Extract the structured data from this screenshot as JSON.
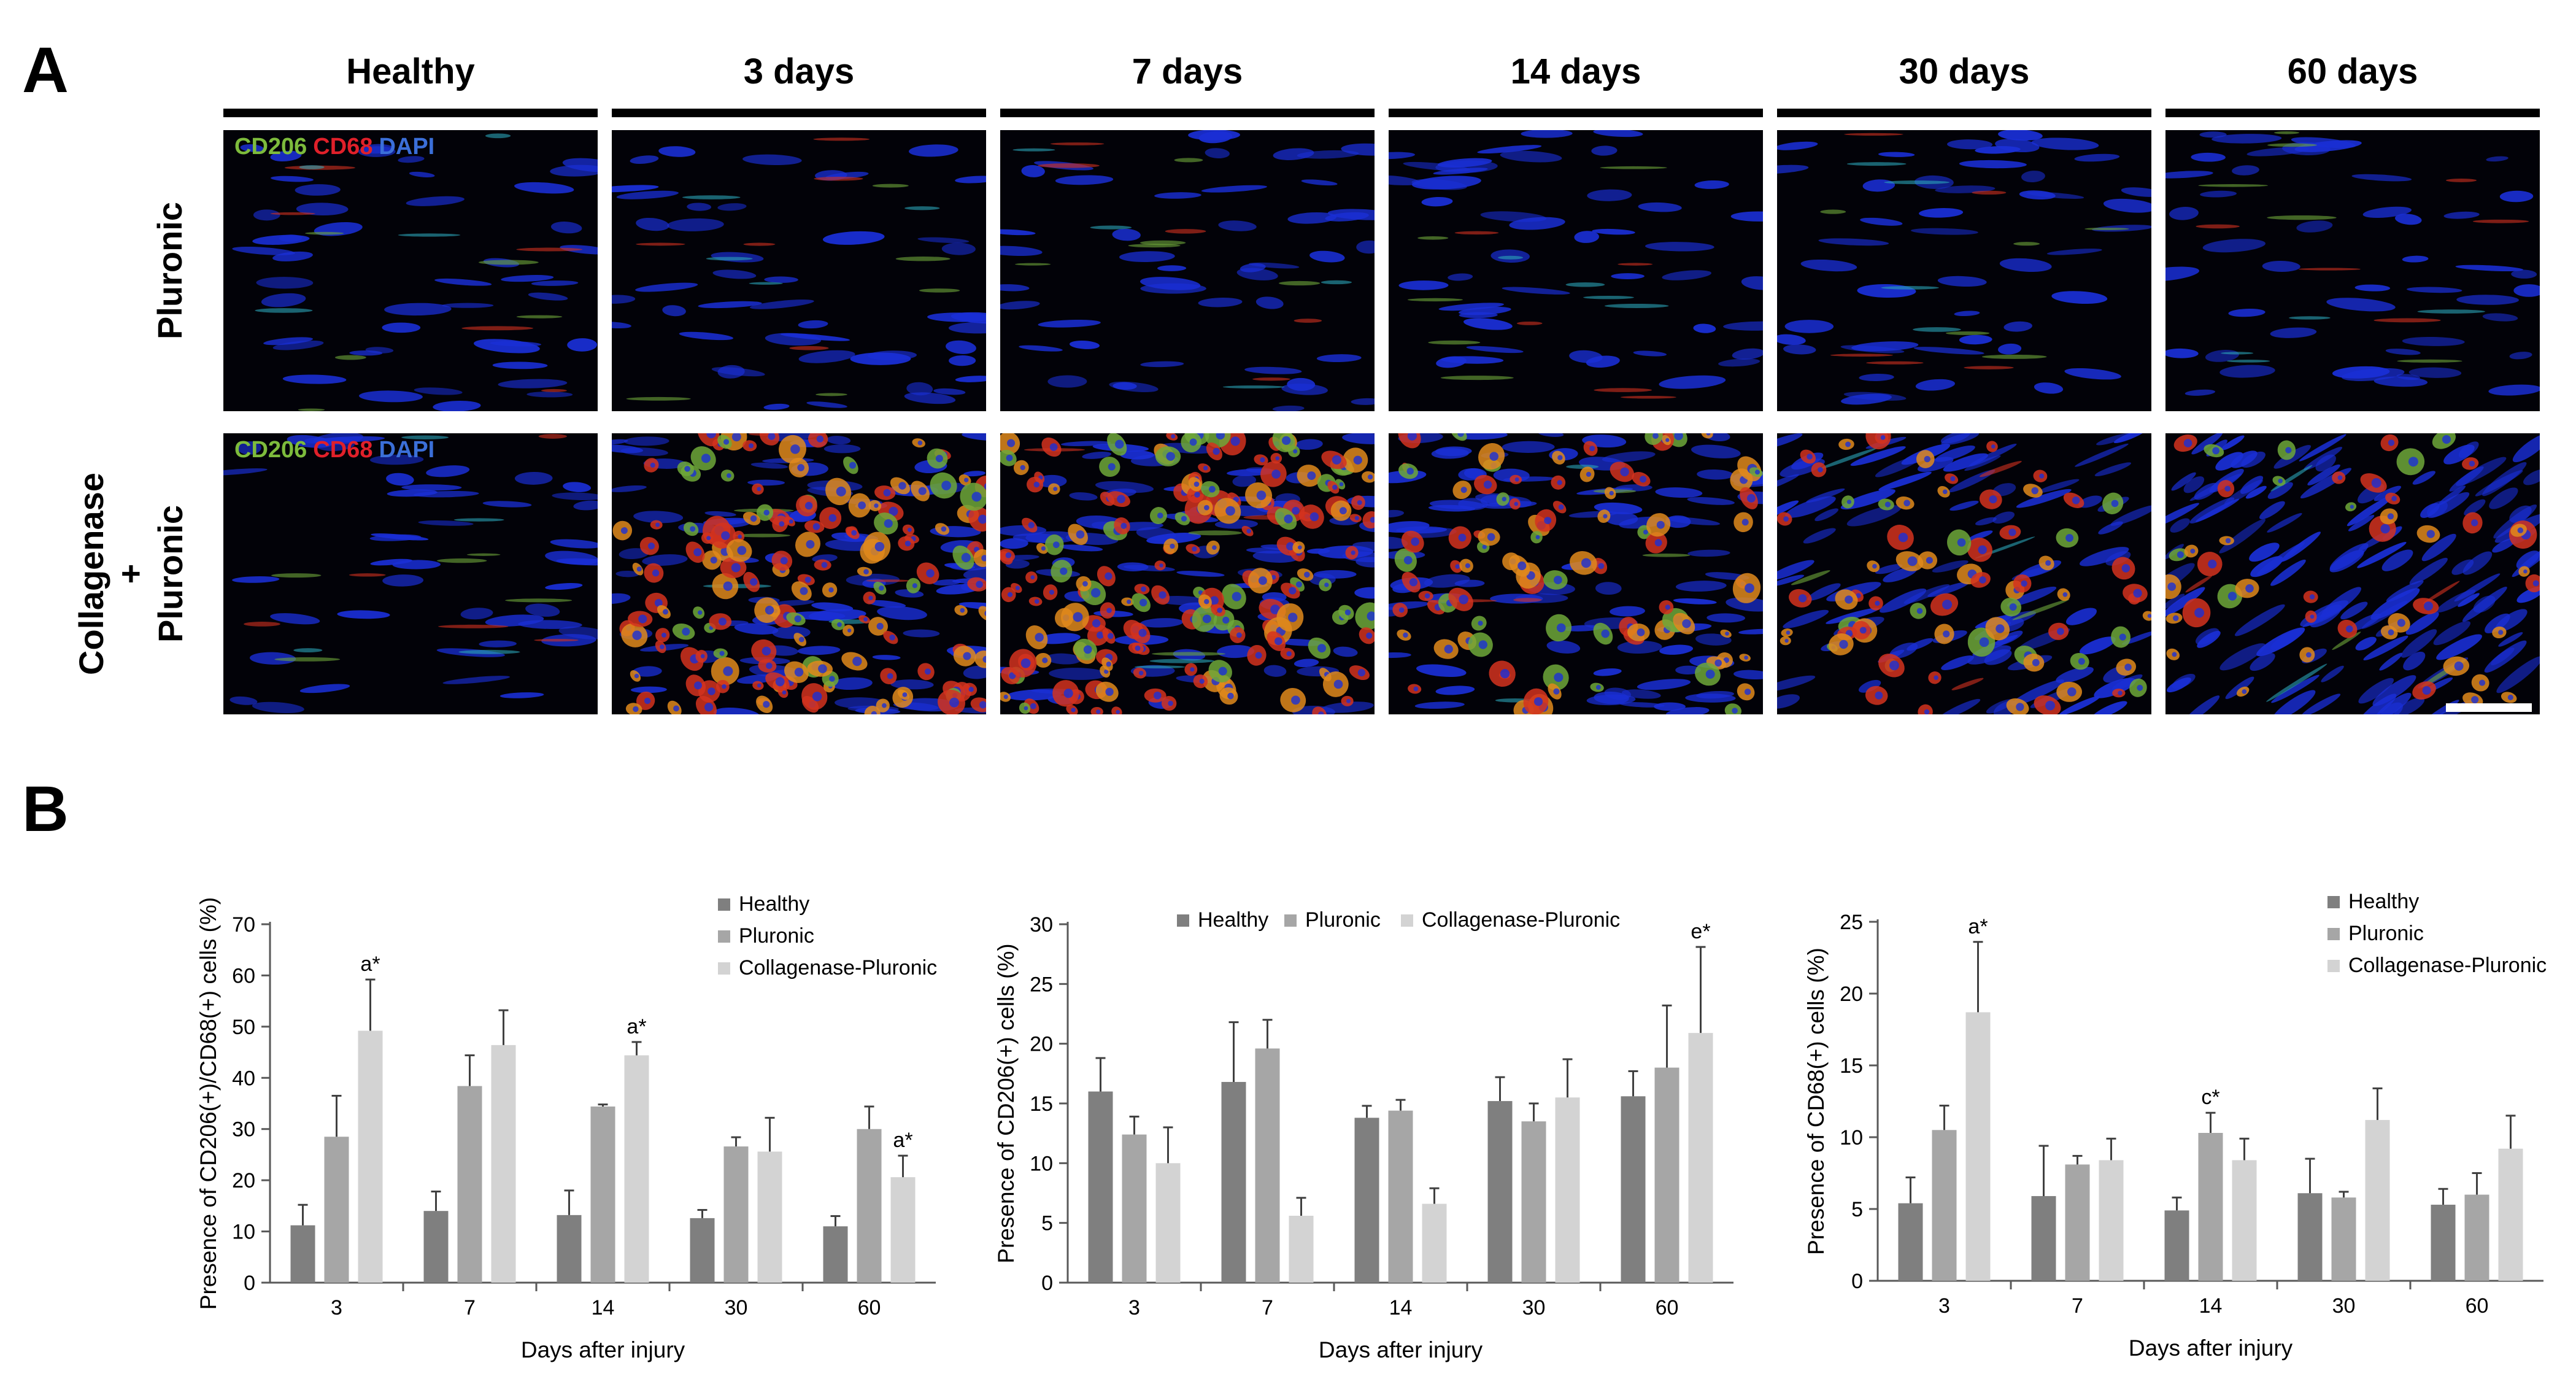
{
  "panel_a": {
    "label": "A",
    "columns": [
      "Healthy",
      "3 days",
      "7 days",
      "14 days",
      "30 days",
      "60 days"
    ],
    "rows": [
      {
        "label_lines": [
          "Pluronic"
        ]
      },
      {
        "label_lines": [
          "Collagenase",
          "+",
          "Pluronic"
        ]
      }
    ],
    "stain_labels": [
      {
        "text": "CD206",
        "color": "#7dbb3c"
      },
      {
        "text": "CD68",
        "color": "#e0202a"
      },
      {
        "text": "DAPI",
        "color": "#3b6fd8"
      }
    ],
    "colors": {
      "nuclei": "#1a2fd6",
      "macrophage_red": "#d4321f",
      "macrophage_orange": "#e08a1c",
      "macrophage_green": "#6fa83a",
      "background": "#020208"
    }
  },
  "panel_b": {
    "label": "B",
    "colors": {
      "Healthy": "#7f7f7f",
      "Pluronic": "#a6a6a6",
      "Collagenase-Pluronic": "#d3d3d3",
      "error_bar": "#404040",
      "axis": "#595959"
    }
  },
  "chart_data": [
    {
      "type": "bar",
      "categories": [
        "3",
        "7",
        "14",
        "30",
        "60"
      ],
      "series": [
        {
          "name": "Healthy",
          "values": [
            11.2,
            14.0,
            13.2,
            12.6,
            11.0
          ],
          "errors": [
            4.0,
            3.8,
            4.8,
            1.6,
            2.0
          ]
        },
        {
          "name": "Pluronic",
          "values": [
            28.5,
            38.4,
            34.4,
            26.6,
            30.0
          ],
          "errors": [
            8.0,
            6.0,
            0.4,
            1.8,
            4.4
          ]
        },
        {
          "name": "Collagenase-Pluronic",
          "values": [
            49.2,
            46.4,
            44.4,
            25.6,
            20.6
          ],
          "errors": [
            10.0,
            6.8,
            2.6,
            6.6,
            4.2
          ]
        }
      ],
      "annotations": [
        {
          "text": "a*",
          "category": "3",
          "series": "Collagenase-Pluronic"
        },
        {
          "text": "a*",
          "category": "14",
          "series": "Collagenase-Pluronic"
        },
        {
          "text": "a*",
          "category": "60",
          "series": "Collagenase-Pluronic"
        }
      ],
      "xlabel": "Days after injury",
      "ylabel": "Presence of CD206(+)/CD68(+) cells (%)",
      "ylim": [
        0,
        70
      ],
      "yticks": [
        0,
        10,
        20,
        30,
        40,
        50,
        60,
        70
      ],
      "legend": "top-right, vertical",
      "grid": false
    },
    {
      "type": "bar",
      "categories": [
        "3",
        "7",
        "14",
        "30",
        "60"
      ],
      "series": [
        {
          "name": "Healthy",
          "values": [
            16.0,
            16.8,
            13.8,
            15.2,
            15.6
          ],
          "errors": [
            2.8,
            5.0,
            1.0,
            2.0,
            2.1
          ]
        },
        {
          "name": "Pluronic",
          "values": [
            12.4,
            19.6,
            14.4,
            13.5,
            18.0
          ],
          "errors": [
            1.5,
            2.4,
            0.9,
            1.5,
            5.2
          ]
        },
        {
          "name": "Collagenase-Pluronic",
          "values": [
            10.0,
            5.6,
            6.6,
            15.5,
            20.9
          ],
          "errors": [
            3.0,
            1.5,
            1.3,
            3.2,
            7.2
          ]
        }
      ],
      "annotations": [
        {
          "text": "e*",
          "category": "60",
          "series": "Collagenase-Pluronic"
        }
      ],
      "xlabel": "Days after injury",
      "ylabel": "Presence of CD206(+) cells (%)",
      "ylim": [
        0,
        30
      ],
      "yticks": [
        0,
        5,
        10,
        15,
        20,
        25,
        30
      ],
      "legend": "top, horizontal",
      "grid": false
    },
    {
      "type": "bar",
      "categories": [
        "3",
        "7",
        "14",
        "30",
        "60"
      ],
      "series": [
        {
          "name": "Healthy",
          "values": [
            5.4,
            5.9,
            4.9,
            6.1,
            5.3
          ],
          "errors": [
            1.8,
            3.5,
            0.9,
            2.4,
            1.1
          ]
        },
        {
          "name": "Pluronic",
          "values": [
            10.5,
            8.1,
            10.3,
            5.8,
            6.0
          ],
          "errors": [
            1.7,
            0.6,
            1.4,
            0.4,
            1.5
          ]
        },
        {
          "name": "Collagenase-Pluronic",
          "values": [
            18.7,
            8.4,
            8.4,
            11.2,
            9.2
          ],
          "errors": [
            4.9,
            1.5,
            1.5,
            2.2,
            2.3
          ]
        }
      ],
      "annotations": [
        {
          "text": "a*",
          "category": "3",
          "series": "Collagenase-Pluronic"
        },
        {
          "text": "c*",
          "category": "14",
          "series": "Pluronic"
        }
      ],
      "xlabel": "Days after injury",
      "ylabel": "Presence of CD68(+) cells (%)",
      "ylim": [
        0,
        25
      ],
      "yticks": [
        0,
        5,
        10,
        15,
        20,
        25
      ],
      "legend": "top-right, vertical",
      "grid": false
    }
  ]
}
